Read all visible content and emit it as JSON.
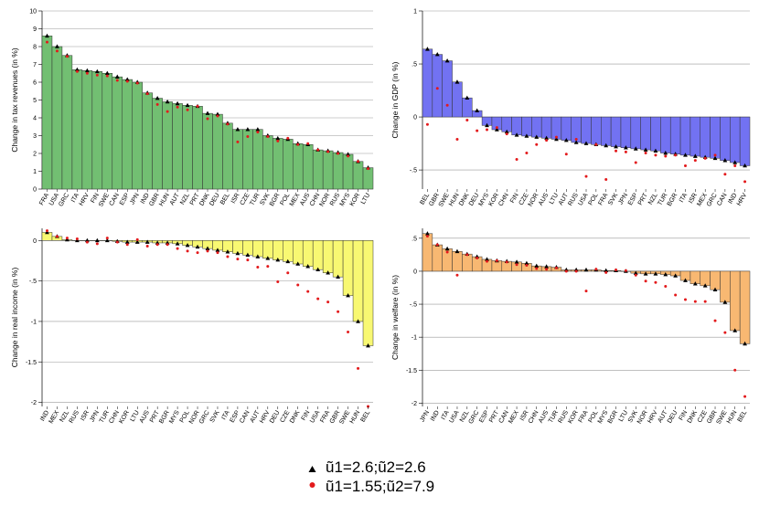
{
  "chart_data": [
    {
      "type": "bar",
      "ylabel": "Change in tax revenues (in %)",
      "ylim": [
        0,
        10
      ],
      "yticks": [
        0,
        1,
        2,
        3,
        4,
        5,
        6,
        7,
        8,
        9,
        10
      ],
      "ytick_labels": [
        "0",
        "1",
        "2",
        "3",
        "4",
        "5",
        "6",
        "7",
        "8",
        "9",
        "10"
      ],
      "grid": true,
      "bar_color": "#72bf72",
      "categories": [
        "FRA",
        "USA",
        "GRC",
        "ITA",
        "HRV",
        "FIN",
        "SWE",
        "CAN",
        "ESP",
        "JPN",
        "IND",
        "GBR",
        "HUN",
        "AUT",
        "NZL",
        "PRT",
        "DNK",
        "DEU",
        "BEL",
        "ISR",
        "CZE",
        "TUR",
        "SVK",
        "BGR",
        "POL",
        "MEX",
        "AUS",
        "CHN",
        "NOR",
        "RUS",
        "MYS",
        "KOR",
        "LTU"
      ],
      "series": [
        {
          "name": "ũ1=2.6;ũ2=2.6",
          "values": [
            8.6,
            8.0,
            7.5,
            6.7,
            6.65,
            6.6,
            6.5,
            6.3,
            6.15,
            6.0,
            5.4,
            5.1,
            4.9,
            4.8,
            4.7,
            4.65,
            4.25,
            4.2,
            3.7,
            3.35,
            3.35,
            3.35,
            3.0,
            2.85,
            2.8,
            2.55,
            2.5,
            2.2,
            2.15,
            2.05,
            1.95,
            1.55,
            1.2
          ]
        },
        {
          "name": "ũ1=1.55;ũ2=7.9",
          "values": [
            8.25,
            7.75,
            7.45,
            6.6,
            6.5,
            6.4,
            6.35,
            6.1,
            6.05,
            5.95,
            5.35,
            4.75,
            4.35,
            4.6,
            4.45,
            4.65,
            3.95,
            4.1,
            3.65,
            2.65,
            2.95,
            3.2,
            2.95,
            2.7,
            2.85,
            2.5,
            2.55,
            2.2,
            2.1,
            2.0,
            1.85,
            1.55,
            1.15
          ]
        }
      ]
    },
    {
      "type": "bar",
      "ylabel": "Change in GDP (in %)",
      "ylim": [
        -0.68,
        1.0
      ],
      "yticks": [
        1,
        0.5,
        0,
        -0.5
      ],
      "ytick_labels": [
        "1",
        ".5",
        "0",
        "-.5"
      ],
      "grid": true,
      "bar_color": "#7272f2",
      "categories": [
        "BEL",
        "GBR",
        "SWE",
        "HUN",
        "DNK",
        "DEU",
        "MYS",
        "KOR",
        "CHN",
        "FIN",
        "CZE",
        "NOR",
        "AUS",
        "LTU",
        "AUT",
        "RUS",
        "USA",
        "POL",
        "FRA",
        "SVK",
        "JPN",
        "ESP",
        "PRT",
        "NZL",
        "TUR",
        "BGR",
        "ITA",
        "ISR",
        "MEX",
        "GRC",
        "CAN",
        "IND",
        "HRV"
      ],
      "series": [
        {
          "name": "ũ1=2.6;ũ2=2.6",
          "values": [
            0.64,
            0.59,
            0.53,
            0.33,
            0.18,
            0.06,
            -0.08,
            -0.12,
            -0.14,
            -0.17,
            -0.18,
            -0.19,
            -0.2,
            -0.21,
            -0.22,
            -0.24,
            -0.25,
            -0.26,
            -0.27,
            -0.28,
            -0.29,
            -0.3,
            -0.31,
            -0.32,
            -0.34,
            -0.35,
            -0.36,
            -0.37,
            -0.38,
            -0.39,
            -0.41,
            -0.43,
            -0.46
          ]
        },
        {
          "name": "ũ1=1.55;ũ2=7.9",
          "values": [
            -0.07,
            0.27,
            0.11,
            -0.21,
            -0.03,
            -0.13,
            -0.12,
            -0.1,
            -0.16,
            -0.4,
            -0.34,
            -0.26,
            -0.22,
            -0.19,
            -0.35,
            -0.21,
            -0.56,
            -0.26,
            -0.59,
            -0.32,
            -0.33,
            -0.43,
            -0.34,
            -0.36,
            -0.37,
            -0.36,
            -0.46,
            -0.41,
            -0.39,
            -0.36,
            -0.54,
            -0.46,
            -0.61
          ]
        }
      ]
    },
    {
      "type": "bar",
      "ylabel": "Change in real income (in %)",
      "ylim": [
        -2.05,
        0.15
      ],
      "yticks": [
        0,
        -0.5,
        -1,
        -1.5,
        -2
      ],
      "ytick_labels": [
        "0",
        "-.5",
        "-1",
        "-1.5",
        "-2"
      ],
      "grid": true,
      "bar_color": "#f8f872",
      "categories": [
        "IND",
        "MEX",
        "NZL",
        "RUS",
        "ISR",
        "JPN",
        "TUR",
        "CHN",
        "KOR",
        "LTU",
        "AUS",
        "PRT",
        "BGR",
        "MYS",
        "POL",
        "NOR",
        "GRC",
        "SVK",
        "ITA",
        "ESP",
        "CAN",
        "AUT",
        "HRV",
        "DEU",
        "CZE",
        "DNK",
        "FIN",
        "USA",
        "FRA",
        "GBR",
        "SWE",
        "HUN",
        "BEL"
      ],
      "series": [
        {
          "name": "ũ1=2.6;ũ2=2.6",
          "values": [
            0.1,
            0.05,
            0.01,
            0.0,
            0.0,
            0.0,
            0.0,
            -0.01,
            -0.02,
            -0.02,
            -0.02,
            -0.03,
            -0.03,
            -0.04,
            -0.06,
            -0.08,
            -0.1,
            -0.12,
            -0.14,
            -0.16,
            -0.18,
            -0.2,
            -0.22,
            -0.24,
            -0.26,
            -0.29,
            -0.32,
            -0.36,
            -0.4,
            -0.45,
            -0.68,
            -1.0,
            -1.3
          ]
        },
        {
          "name": "ũ1=1.55;ũ2=7.9",
          "values": [
            0.12,
            0.05,
            0.03,
            0.02,
            -0.02,
            -0.04,
            0.03,
            -0.02,
            -0.05,
            0.01,
            -0.07,
            -0.05,
            -0.05,
            -0.1,
            -0.13,
            -0.15,
            -0.13,
            -0.15,
            -0.2,
            -0.23,
            -0.24,
            -0.33,
            -0.32,
            -0.51,
            -0.4,
            -0.55,
            -0.63,
            -0.72,
            -0.76,
            -0.88,
            -1.13,
            -1.58,
            -2.05
          ]
        }
      ]
    },
    {
      "type": "bar",
      "ylabel": "Change in welfare (in %)",
      "ylim": [
        -2.05,
        0.65
      ],
      "yticks": [
        0.5,
        0,
        -0.5,
        -1,
        -1.5,
        -2
      ],
      "ytick_labels": [
        ".5",
        "0",
        "-.5",
        "-1",
        "-1.5",
        "-2"
      ],
      "grid": true,
      "bar_color": "#f8b872",
      "categories": [
        "JPN",
        "IND",
        "ITA",
        "USA",
        "NZL",
        "GRC",
        "ESP",
        "PRT",
        "CAN",
        "MEX",
        "ISR",
        "CHN",
        "AUS",
        "TUR",
        "RUS",
        "KOR",
        "FRA",
        "POL",
        "MYS",
        "BGR",
        "LTU",
        "SVK",
        "NOR",
        "HRV",
        "AUT",
        "DEU",
        "FIN",
        "DNK",
        "CZE",
        "GBR",
        "SWE",
        "HUN",
        "BEL"
      ],
      "series": [
        {
          "name": "ũ1=2.6;ũ2=2.6",
          "values": [
            0.57,
            0.4,
            0.34,
            0.3,
            0.26,
            0.22,
            0.18,
            0.16,
            0.15,
            0.14,
            0.12,
            0.08,
            0.07,
            0.06,
            0.02,
            0.02,
            0.02,
            0.02,
            0.01,
            0.01,
            0.0,
            -0.03,
            -0.04,
            -0.04,
            -0.05,
            -0.07,
            -0.14,
            -0.19,
            -0.22,
            -0.28,
            -0.47,
            -0.9,
            -1.1
          ]
        },
        {
          "name": "ũ1=1.55;ũ2=7.9",
          "values": [
            0.53,
            0.4,
            0.29,
            -0.06,
            0.25,
            0.2,
            0.15,
            0.16,
            0.14,
            0.1,
            0.09,
            0.04,
            0.03,
            0.05,
            0.0,
            0.0,
            -0.3,
            0.03,
            -0.02,
            0.02,
            0.01,
            -0.06,
            -0.15,
            -0.17,
            -0.23,
            -0.36,
            -0.43,
            -0.46,
            -0.46,
            -0.75,
            -0.93,
            -1.5,
            -1.9
          ]
        }
      ]
    }
  ],
  "legend": [
    {
      "text": "ũ1=2.6;ũ2=2.6",
      "marker": "triangle",
      "color": "#000000"
    },
    {
      "text": "ũ1=1.55;ũ2=7.9",
      "marker": "circle",
      "color": "#e31a1c"
    }
  ]
}
